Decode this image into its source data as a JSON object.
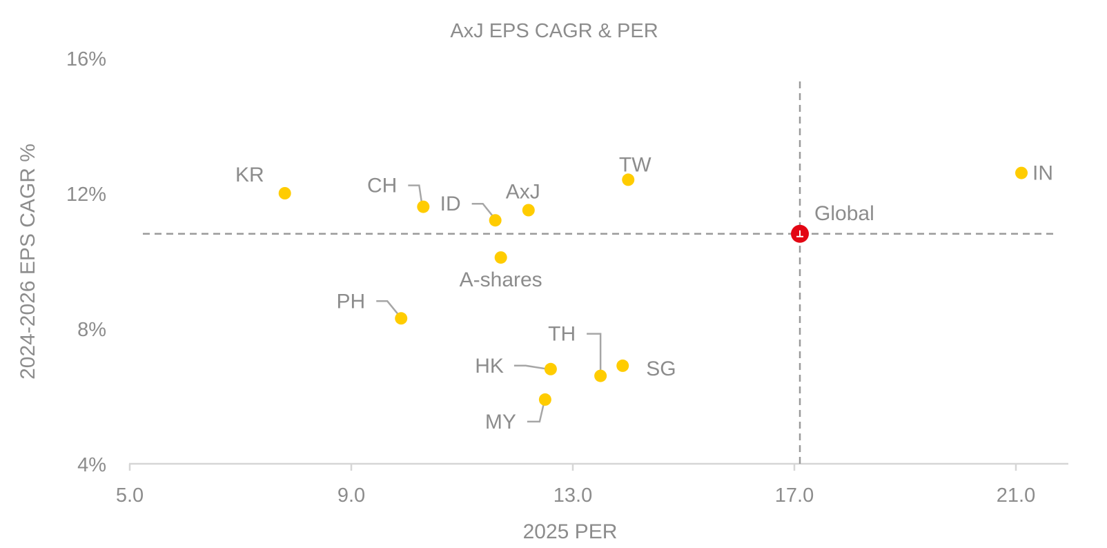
{
  "chart_data": {
    "type": "scatter",
    "title": "AxJ EPS CAGR & PER",
    "xlabel": "2025 PER",
    "ylabel": "2024-2026 EPS CAGR %",
    "xlim": [
      5.0,
      22.0
    ],
    "ylim": [
      4,
      16
    ],
    "x_ticks": [
      "5.0",
      "9.0",
      "13.0",
      "17.0",
      "21.0"
    ],
    "x_tick_values": [
      5,
      9,
      13,
      17,
      21
    ],
    "y_ticks": [
      "4%",
      "8%",
      "12%",
      "16%"
    ],
    "y_tick_values": [
      4,
      8,
      12,
      16
    ],
    "grid": false,
    "legend": "none",
    "colors": {
      "markets": "#ffcc00",
      "global": "#e30613"
    },
    "points": [
      {
        "label": "KR",
        "x": 7.8,
        "y": 12.0
      },
      {
        "label": "CH",
        "x": 10.3,
        "y": 11.6
      },
      {
        "label": "ID",
        "x": 11.6,
        "y": 11.2
      },
      {
        "label": "AxJ",
        "x": 12.2,
        "y": 11.5
      },
      {
        "label": "TW",
        "x": 14.0,
        "y": 12.4
      },
      {
        "label": "IN",
        "x": 21.1,
        "y": 12.6
      },
      {
        "label": "A-shares",
        "x": 11.7,
        "y": 10.1
      },
      {
        "label": "PH",
        "x": 9.9,
        "y": 8.3
      },
      {
        "label": "TH",
        "x": 13.5,
        "y": 6.6
      },
      {
        "label": "SG",
        "x": 13.9,
        "y": 6.9
      },
      {
        "label": "HK",
        "x": 12.6,
        "y": 6.8
      },
      {
        "label": "MY",
        "x": 12.5,
        "y": 5.9
      }
    ],
    "reference": {
      "label": "Global",
      "x": 17.1,
      "y": 10.8
    }
  }
}
